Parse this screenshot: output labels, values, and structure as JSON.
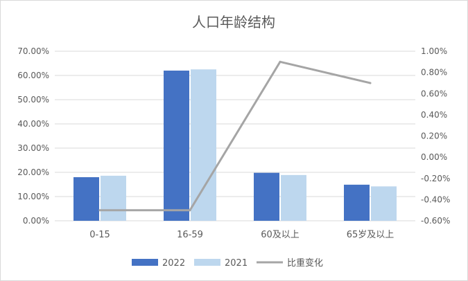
{
  "chart_data": {
    "type": "bar",
    "title": "人口年龄结构",
    "categories": [
      "0-15",
      "16-59",
      "60及以上",
      "65岁及以上"
    ],
    "series": [
      {
        "name": "2022",
        "kind": "bar",
        "axis": "left",
        "color": "#4472c4",
        "values": [
          18.0,
          62.0,
          19.8,
          14.9
        ]
      },
      {
        "name": "2021",
        "kind": "bar",
        "axis": "left",
        "color": "#bdd7ee",
        "values": [
          18.6,
          62.5,
          18.9,
          14.2
        ]
      },
      {
        "name": "比重变化",
        "kind": "line",
        "axis": "right",
        "color": "#a5a5a5",
        "values": [
          -0.5,
          -0.5,
          0.9,
          0.7
        ]
      }
    ],
    "y_left": {
      "min": 0,
      "max": 70,
      "step": 10,
      "tick_labels": [
        "0.00%",
        "10.00%",
        "20.00%",
        "30.00%",
        "40.00%",
        "50.00%",
        "60.00%",
        "70.00%"
      ]
    },
    "y_right": {
      "min": -0.6,
      "max": 1.0,
      "step": 0.2,
      "tick_labels": [
        "-0.60%",
        "-0.40%",
        "-0.20%",
        "0.00%",
        "0.20%",
        "0.40%",
        "0.60%",
        "0.80%",
        "1.00%"
      ]
    },
    "grid": true,
    "legend": "bottom"
  }
}
